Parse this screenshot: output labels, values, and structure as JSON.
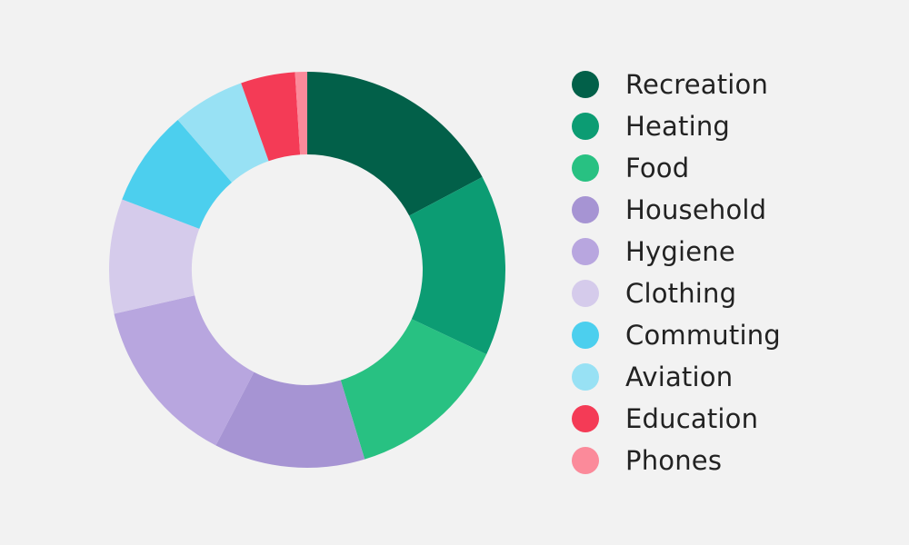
{
  "chart_data": {
    "type": "pie",
    "donut": true,
    "categories": [
      "Recreation",
      "Heating",
      "Food",
      "Household",
      "Hygiene",
      "Clothing",
      "Commuting",
      "Aviation",
      "Education",
      "Phones"
    ],
    "values": [
      17.5,
      15.0,
      13.5,
      12.5,
      14.0,
      9.5,
      8.0,
      6.0,
      4.5,
      1.0
    ],
    "colors": [
      "#026049",
      "#0c9c73",
      "#28c182",
      "#a694d3",
      "#b8a6df",
      "#d5cbeb",
      "#4ccfee",
      "#98e1f4",
      "#f43b56",
      "#fb8a9a"
    ],
    "legend_position": "right"
  }
}
